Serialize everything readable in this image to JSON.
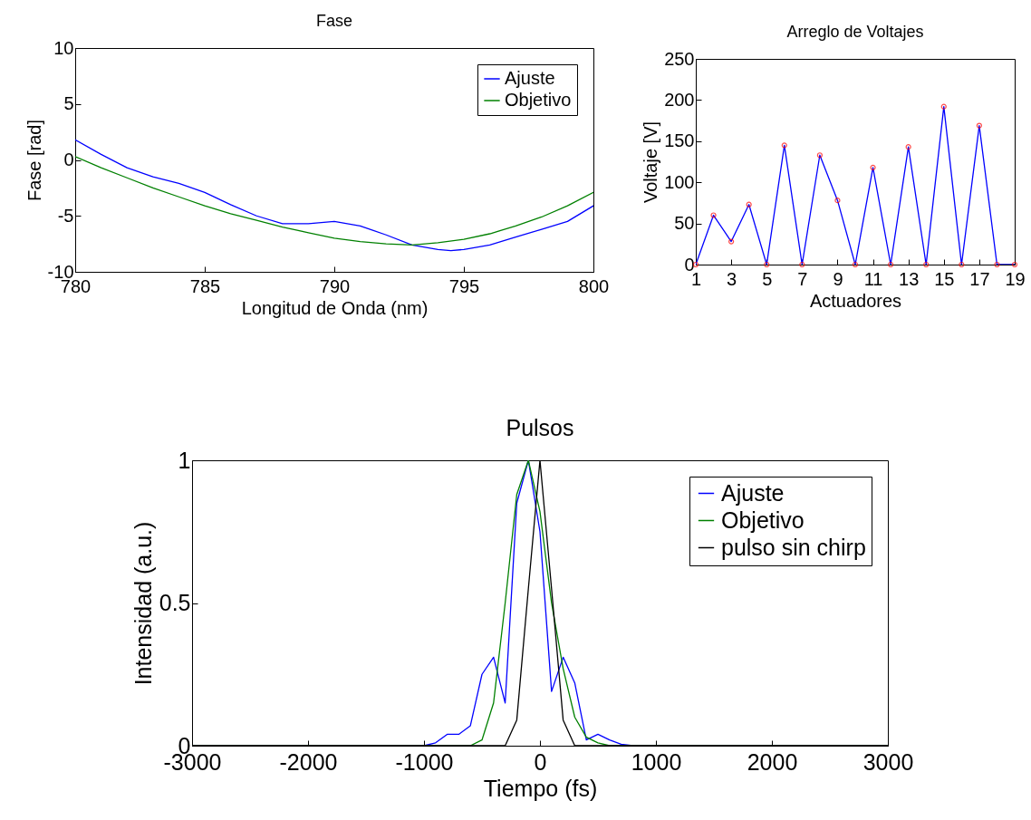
{
  "chart_data": [
    {
      "type": "line",
      "title": "Fase",
      "xlabel": "Longitud de Onda (nm)",
      "ylabel": "Fase [rad]",
      "xlim": [
        780,
        800
      ],
      "xticks": [
        780,
        785,
        790,
        795,
        800
      ],
      "ylim": [
        -10,
        10
      ],
      "yticks": [
        -10,
        -5,
        0,
        5,
        10
      ],
      "grid": false,
      "legend": "top right",
      "series": [
        {
          "name": "Ajuste",
          "color": "#0000ff",
          "x": [
            780,
            781,
            782,
            783,
            784,
            785,
            786,
            787,
            788,
            789,
            790,
            791,
            792,
            793,
            794,
            794.5,
            795,
            796,
            797,
            798,
            799,
            800
          ],
          "values": [
            1.8,
            0.5,
            -0.7,
            -1.5,
            -2.1,
            -2.9,
            -4.0,
            -5.0,
            -5.7,
            -5.7,
            -5.5,
            -5.9,
            -6.7,
            -7.6,
            -8.0,
            -8.1,
            -8.0,
            -7.6,
            -6.9,
            -6.2,
            -5.5,
            -4.1
          ]
        },
        {
          "name": "Objetivo",
          "color": "#008000",
          "x": [
            780,
            781,
            782,
            783,
            784,
            785,
            786,
            787,
            788,
            789,
            790,
            791,
            792,
            793,
            794,
            795,
            796,
            797,
            798,
            799,
            800
          ],
          "values": [
            0.3,
            -0.7,
            -1.6,
            -2.5,
            -3.3,
            -4.1,
            -4.8,
            -5.4,
            -6.0,
            -6.5,
            -7.0,
            -7.3,
            -7.5,
            -7.6,
            -7.4,
            -7.1,
            -6.6,
            -5.9,
            -5.1,
            -4.1,
            -2.9
          ]
        }
      ]
    },
    {
      "type": "line",
      "title": "Arreglo de Voltajes",
      "xlabel": "Actuadores",
      "ylabel": "Voltaje [V]",
      "x": [
        1,
        2,
        3,
        4,
        5,
        6,
        7,
        8,
        9,
        10,
        11,
        12,
        13,
        14,
        15,
        16,
        17,
        18,
        19
      ],
      "xlim": [
        1,
        19
      ],
      "xticks": [
        1,
        3,
        5,
        7,
        9,
        11,
        13,
        15,
        17,
        19
      ],
      "ylim": [
        0,
        250
      ],
      "yticks": [
        0,
        50,
        100,
        150,
        200,
        250
      ],
      "grid": false,
      "series": [
        {
          "type": "line",
          "color": "#0000ff",
          "values": [
            0,
            60,
            28,
            73,
            0,
            145,
            0,
            133,
            78,
            0,
            118,
            0,
            143,
            0,
            192,
            0,
            169,
            0,
            0
          ]
        },
        {
          "type": "scatter",
          "color": "#ff0000",
          "marker": "circle",
          "values": [
            0,
            60,
            28,
            73,
            0,
            145,
            0,
            133,
            78,
            0,
            118,
            0,
            143,
            0,
            192,
            0,
            169,
            0,
            0
          ]
        }
      ]
    },
    {
      "type": "line",
      "title": "Pulsos",
      "xlabel": "Tiempo (fs)",
      "ylabel": "Intensidad (a.u.)",
      "xlim": [
        -3000,
        3000
      ],
      "xticks": [
        -3000,
        -2000,
        -1000,
        0,
        1000,
        2000,
        3000
      ],
      "ylim": [
        0,
        1
      ],
      "yticks": [
        0,
        0.5,
        1
      ],
      "grid": false,
      "legend": "top right",
      "series": [
        {
          "name": "Ajuste",
          "color": "#0000ff",
          "x": [
            -3000,
            -1200,
            -1000,
            -900,
            -800,
            -700,
            -600,
            -500,
            -400,
            -300,
            -200,
            -100,
            0,
            100,
            200,
            300,
            400,
            500,
            600,
            700,
            800,
            3000
          ],
          "values": [
            0,
            0,
            0,
            0.01,
            0.04,
            0.04,
            0.07,
            0.25,
            0.31,
            0.15,
            0.85,
            1.0,
            0.75,
            0.19,
            0.31,
            0.22,
            0.02,
            0.04,
            0.02,
            0.005,
            0,
            0
          ]
        },
        {
          "name": "Objetivo",
          "color": "#008000",
          "x": [
            -3000,
            -600,
            -500,
            -400,
            -300,
            -200,
            -100,
            0,
            100,
            200,
            300,
            400,
            500,
            600,
            3000
          ],
          "values": [
            0,
            0,
            0.02,
            0.15,
            0.5,
            0.88,
            1.0,
            0.82,
            0.5,
            0.27,
            0.1,
            0.03,
            0.01,
            0,
            0
          ]
        },
        {
          "name": "pulso sin chirp",
          "color": "#000000",
          "x": [
            -3000,
            -300,
            -200,
            -100,
            0,
            100,
            200,
            300,
            3000
          ],
          "values": [
            0,
            0,
            0.09,
            0.55,
            1.0,
            0.55,
            0.09,
            0,
            0
          ]
        }
      ]
    }
  ]
}
